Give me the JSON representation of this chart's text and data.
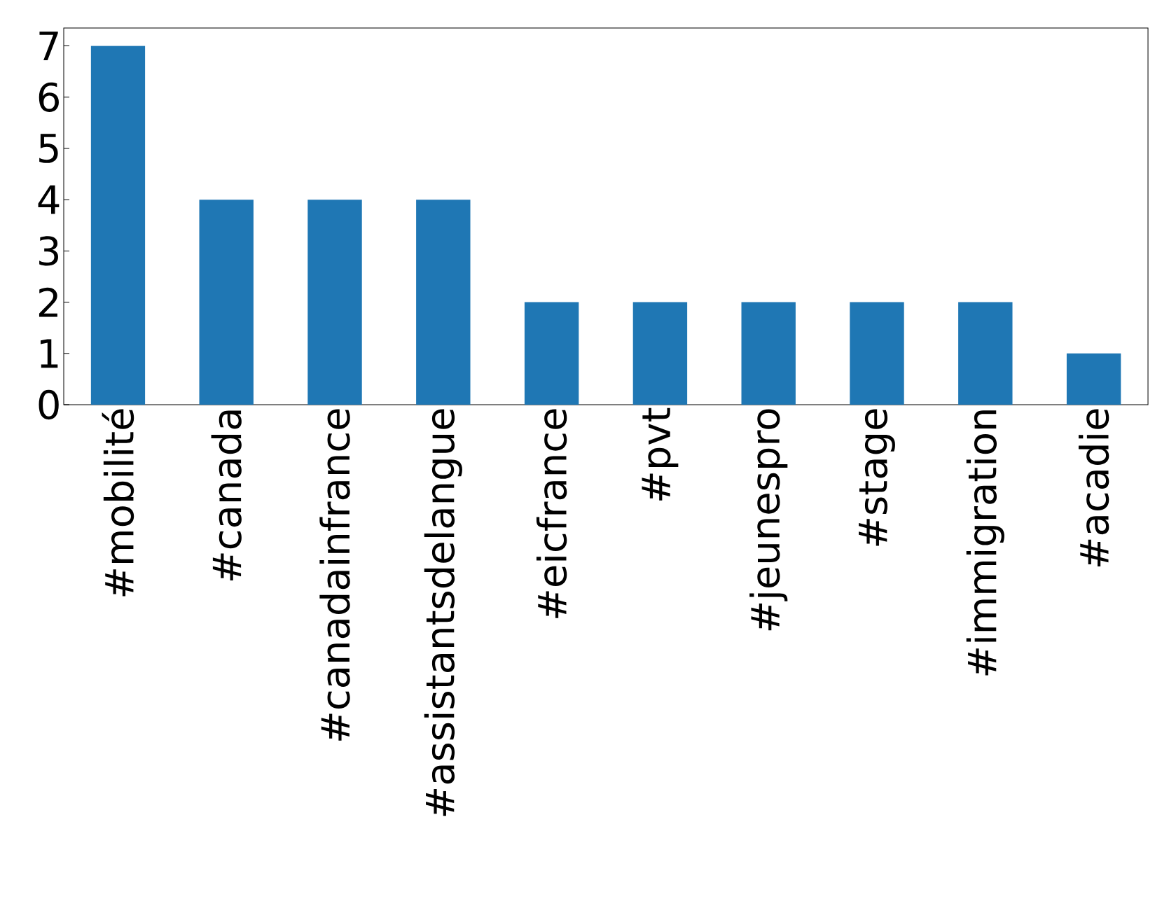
{
  "chart_data": {
    "type": "bar",
    "categories": [
      "#mobilité",
      "#canada",
      "#canadainfrance",
      "#assistantsdelangue",
      "#eicfrance",
      "#pvt",
      "#jeunespro",
      "#stage",
      "#immigration",
      "#acadie"
    ],
    "values": [
      7,
      4,
      4,
      4,
      2,
      2,
      2,
      2,
      2,
      1
    ],
    "color": "#1f77b4",
    "ylim": [
      0,
      7.35
    ],
    "yticks": [
      0,
      1,
      2,
      3,
      4,
      5,
      6,
      7
    ]
  }
}
